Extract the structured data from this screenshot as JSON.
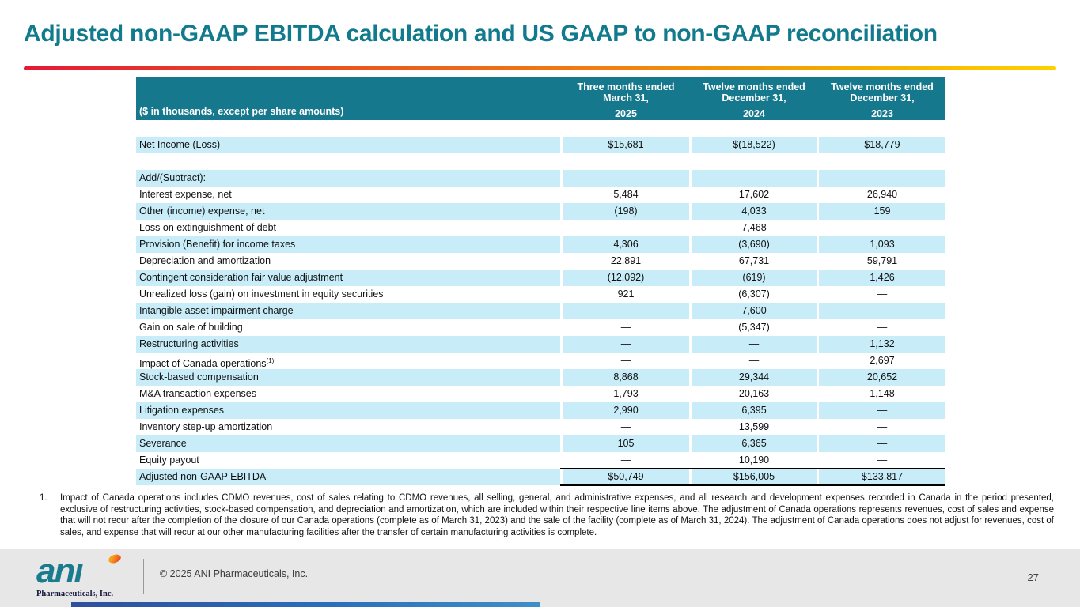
{
  "slide": {
    "title": "Adjusted non-GAAP EBITDA calculation and US GAAP to non-GAAP reconciliation",
    "page_number": "27",
    "copyright": "© 2025 ANI Pharmaceuticals, Inc.",
    "logo": {
      "word": "anı",
      "subtext": "Pharmaceuticals, Inc."
    }
  },
  "colors": {
    "title_teal": "#117A8C",
    "table_header_teal": "#16788C",
    "row_highlight_blue": "#C8EDF9",
    "accent_gradient_left": "#E51937",
    "accent_gradient_right": "#FFD100"
  },
  "table": {
    "caption": "($ in thousands, except per share amounts)",
    "col_headers": [
      {
        "line1": "Three months ended",
        "line2": "March 31,",
        "year": "2025"
      },
      {
        "line1": "Twelve months ended",
        "line2": "December 31,",
        "year": "2024"
      },
      {
        "line1": "Twelve months ended",
        "line2": "December 31,",
        "year": "2023"
      }
    ],
    "rows": [
      {
        "label": "",
        "values": [
          "",
          "",
          ""
        ],
        "highlight": false,
        "spacer": true
      },
      {
        "label": "Net Income (Loss)",
        "values": [
          "$15,681",
          "$(18,522)",
          "$18,779"
        ],
        "highlight": true
      },
      {
        "label": "",
        "values": [
          "",
          "",
          ""
        ],
        "highlight": false,
        "spacer": true
      },
      {
        "label": "Add/(Subtract):",
        "values": [
          "",
          "",
          ""
        ],
        "highlight": true
      },
      {
        "label": "Interest expense, net",
        "values": [
          "5,484",
          "17,602",
          "26,940"
        ],
        "highlight": false
      },
      {
        "label": "Other (income) expense, net",
        "values": [
          "(198)",
          "4,033",
          "159"
        ],
        "highlight": true
      },
      {
        "label": "Loss on extinguishment of debt",
        "values": [
          "—",
          "7,468",
          "—"
        ],
        "highlight": false
      },
      {
        "label": "Provision (Benefit) for income taxes",
        "values": [
          "4,306",
          "(3,690)",
          "1,093"
        ],
        "highlight": true
      },
      {
        "label": "Depreciation and amortization",
        "values": [
          "22,891",
          "67,731",
          "59,791"
        ],
        "highlight": false
      },
      {
        "label": "Contingent consideration fair value adjustment",
        "values": [
          "(12,092)",
          "(619)",
          "1,426"
        ],
        "highlight": true
      },
      {
        "label": "Unrealized loss (gain) on investment in equity securities",
        "values": [
          "921",
          "(6,307)",
          "—"
        ],
        "highlight": false
      },
      {
        "label": "Intangible asset impairment charge",
        "values": [
          "—",
          "7,600",
          "—"
        ],
        "highlight": true
      },
      {
        "label": "Gain on sale of building",
        "values": [
          "—",
          "(5,347)",
          "—"
        ],
        "highlight": false
      },
      {
        "label": "Restructuring activities",
        "values": [
          "—",
          "—",
          "1,132"
        ],
        "highlight": true
      },
      {
        "label": "Impact of Canada operations",
        "label_sup": "(1)",
        "values": [
          "—",
          "—",
          "2,697"
        ],
        "highlight": false
      },
      {
        "label": "Stock-based compensation",
        "values": [
          "8,868",
          "29,344",
          "20,652"
        ],
        "highlight": true
      },
      {
        "label": "M&A transaction expenses",
        "values": [
          "1,793",
          "20,163",
          "1,148"
        ],
        "highlight": false
      },
      {
        "label": "Litigation expenses",
        "values": [
          "2,990",
          "6,395",
          "—"
        ],
        "highlight": true
      },
      {
        "label": "Inventory step-up amortization",
        "values": [
          "—",
          "13,599",
          "—"
        ],
        "highlight": false
      },
      {
        "label": "Severance",
        "values": [
          "105",
          "6,365",
          "—"
        ],
        "highlight": true
      },
      {
        "label": "Equity payout",
        "values": [
          "—",
          "10,190",
          "—"
        ],
        "highlight": false
      },
      {
        "label": "Adjusted non-GAAP EBITDA",
        "values": [
          "$50,749",
          "$156,005",
          "$133,817"
        ],
        "highlight": true,
        "total": true
      }
    ]
  },
  "footnote": {
    "number": "1.",
    "text": "Impact of Canada operations includes CDMO revenues, cost of sales relating to CDMO revenues, all selling, general, and administrative expenses, and all research and development expenses recorded in Canada in the period presented, exclusive of restructuring activities, stock-based compensation, and depreciation and amortization, which are included within their respective line items above. The adjustment of Canada operations represents revenues, cost of sales and expense that will not recur after the completion of the closure of our Canada operations (complete as of March 31, 2023) and the sale of the facility (complete as of March 31, 2024). The adjustment of Canada operations does not adjust for revenues, cost of sales, and expense that will recur at our other manufacturing facilities after the transfer of certain manufacturing activities is complete."
  }
}
